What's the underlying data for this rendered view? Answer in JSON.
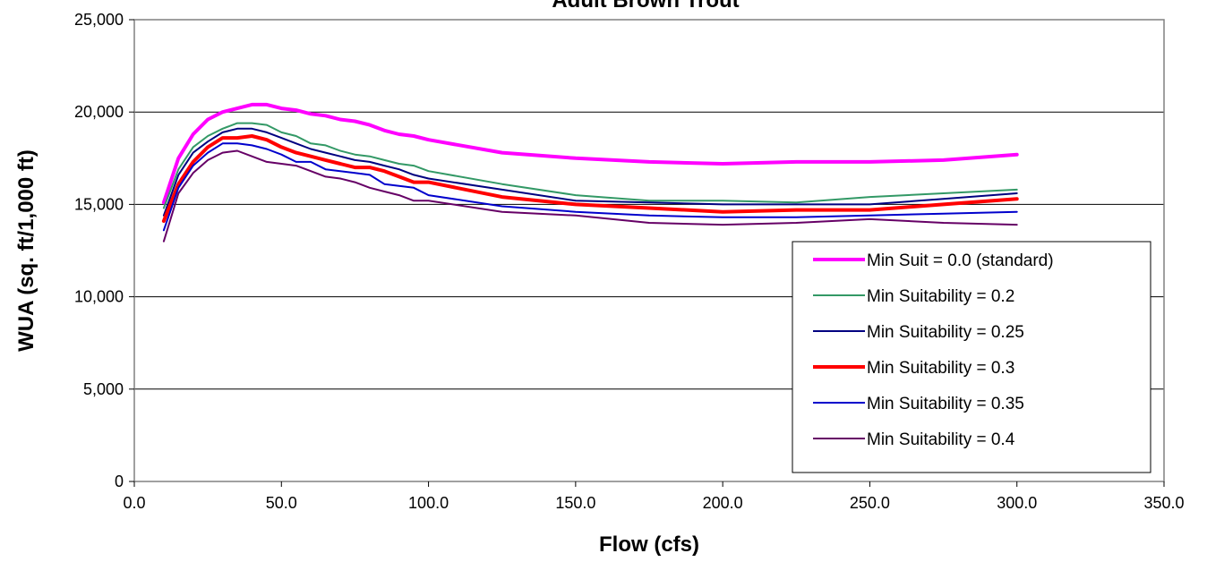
{
  "chart_data": {
    "type": "line",
    "title": "Adult Brown Trout",
    "xlabel": "Flow (cfs)",
    "ylabel": "WUA (sq. ft/1,000 ft)",
    "xlim": [
      0,
      350
    ],
    "ylim": [
      0,
      25000
    ],
    "x_ticks": [
      "0.0",
      "50.0",
      "100.0",
      "150.0",
      "200.0",
      "250.0",
      "300.0",
      "350.0"
    ],
    "y_ticks": [
      "0",
      "5,000",
      "10,000",
      "15,000",
      "20,000",
      "25,000"
    ],
    "grid": "horizontal",
    "legend_position": "bottom-right",
    "x": [
      10,
      15,
      20,
      25,
      30,
      35,
      40,
      45,
      50,
      55,
      60,
      65,
      70,
      75,
      80,
      85,
      90,
      95,
      100,
      125,
      150,
      175,
      200,
      225,
      250,
      275,
      300
    ],
    "series": [
      {
        "name": "Min Suit = 0.0 (standard)",
        "color": "#ff00ff",
        "width": 4,
        "values": [
          15100,
          17500,
          18800,
          19600,
          20000,
          20200,
          20400,
          20400,
          20200,
          20100,
          19900,
          19800,
          19600,
          19500,
          19300,
          19000,
          18800,
          18700,
          18500,
          17800,
          17500,
          17300,
          17200,
          17300,
          17300,
          17400,
          17700
        ]
      },
      {
        "name": "Min Suitability = 0.2",
        "color": "#339966",
        "width": 2,
        "values": [
          14800,
          16900,
          18100,
          18700,
          19100,
          19400,
          19400,
          19300,
          18900,
          18700,
          18300,
          18200,
          17900,
          17700,
          17600,
          17400,
          17200,
          17100,
          16800,
          16100,
          15500,
          15200,
          15200,
          15100,
          15400,
          15600,
          15800
        ]
      },
      {
        "name": "Min Suitability = 0.25",
        "color": "#000080",
        "width": 2,
        "values": [
          14400,
          16600,
          17800,
          18400,
          18900,
          19100,
          19100,
          18900,
          18600,
          18300,
          18000,
          17800,
          17600,
          17400,
          17300,
          17100,
          16900,
          16600,
          16400,
          15800,
          15200,
          15100,
          15000,
          15000,
          15000,
          15300,
          15600
        ]
      },
      {
        "name": "Min Suitability = 0.3",
        "color": "#ff0000",
        "width": 4,
        "values": [
          14100,
          16100,
          17300,
          18100,
          18600,
          18600,
          18700,
          18500,
          18100,
          17800,
          17600,
          17400,
          17200,
          17000,
          17000,
          16800,
          16500,
          16200,
          16200,
          15400,
          15000,
          14800,
          14600,
          14700,
          14700,
          15000,
          15300
        ]
      },
      {
        "name": "Min Suitability = 0.35",
        "color": "#0000cc",
        "width": 2,
        "values": [
          13600,
          15900,
          17100,
          17800,
          18300,
          18300,
          18200,
          18000,
          17700,
          17300,
          17300,
          16900,
          16800,
          16700,
          16600,
          16100,
          16000,
          15900,
          15500,
          14900,
          14600,
          14400,
          14300,
          14300,
          14400,
          14500,
          14600
        ]
      },
      {
        "name": "Min Suitability = 0.4",
        "color": "#660066",
        "width": 2,
        "values": [
          13000,
          15600,
          16700,
          17400,
          17800,
          17900,
          17600,
          17300,
          17200,
          17100,
          16800,
          16500,
          16400,
          16200,
          15900,
          15700,
          15500,
          15200,
          15200,
          14600,
          14400,
          14000,
          13900,
          14000,
          14200,
          14000,
          13900
        ]
      }
    ]
  }
}
